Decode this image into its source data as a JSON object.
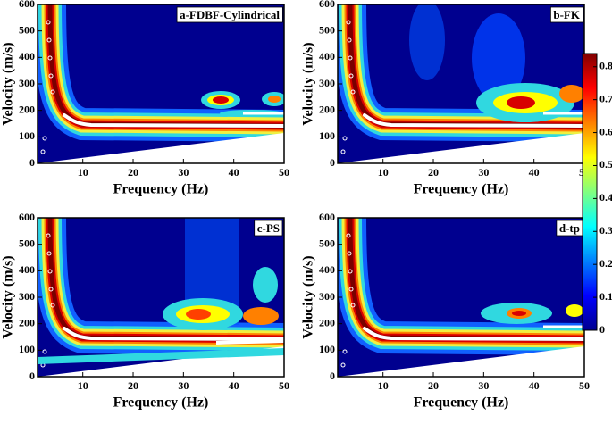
{
  "chart_data": [
    {
      "type": "contour",
      "label": "a-FDBF-Cylindrical",
      "xlabel": "Frequency (Hz)",
      "ylabel": "Velocity (m/s)",
      "xlim": [
        1,
        50
      ],
      "ylim": [
        0,
        600
      ],
      "xticks": [
        10,
        20,
        30,
        40,
        50
      ],
      "yticks": [
        0,
        100,
        200,
        300,
        400,
        500,
        600
      ]
    },
    {
      "type": "contour",
      "label": "b-FK",
      "xlabel": "Frequency (Hz)",
      "ylabel": "Velocity (m/s)",
      "xlim": [
        1,
        50
      ],
      "ylim": [
        0,
        600
      ],
      "xticks": [
        10,
        20,
        30,
        40,
        50
      ],
      "yticks": [
        0,
        100,
        200,
        300,
        400,
        500,
        600
      ]
    },
    {
      "type": "contour",
      "label": "c-PS",
      "xlabel": "Frequency (Hz)",
      "ylabel": "Velocity (m/s)",
      "xlim": [
        1,
        50
      ],
      "ylim": [
        0,
        600
      ],
      "xticks": [
        10,
        20,
        30,
        40,
        50
      ],
      "yticks": [
        0,
        100,
        200,
        300,
        400,
        500,
        600
      ]
    },
    {
      "type": "contour",
      "label": "d-tp",
      "xlabel": "Frequency (Hz)",
      "ylabel": "Velocity (m/s)",
      "xlim": [
        1,
        50
      ],
      "ylim": [
        0,
        600
      ],
      "xticks": [
        10,
        20,
        30,
        40,
        50
      ],
      "yticks": [
        0,
        100,
        200,
        300,
        400,
        500,
        600
      ]
    }
  ],
  "colorbar": {
    "lim": [
      0,
      0.84
    ],
    "ticks": [
      0,
      0.1,
      0.2,
      0.3,
      0.4,
      0.5,
      0.6,
      0.7,
      0.8
    ],
    "colors": [
      "#00008f",
      "#0000ff",
      "#0080ff",
      "#00ffff",
      "#80ff80",
      "#ffff00",
      "#ff8000",
      "#ff0000",
      "#800000"
    ]
  }
}
